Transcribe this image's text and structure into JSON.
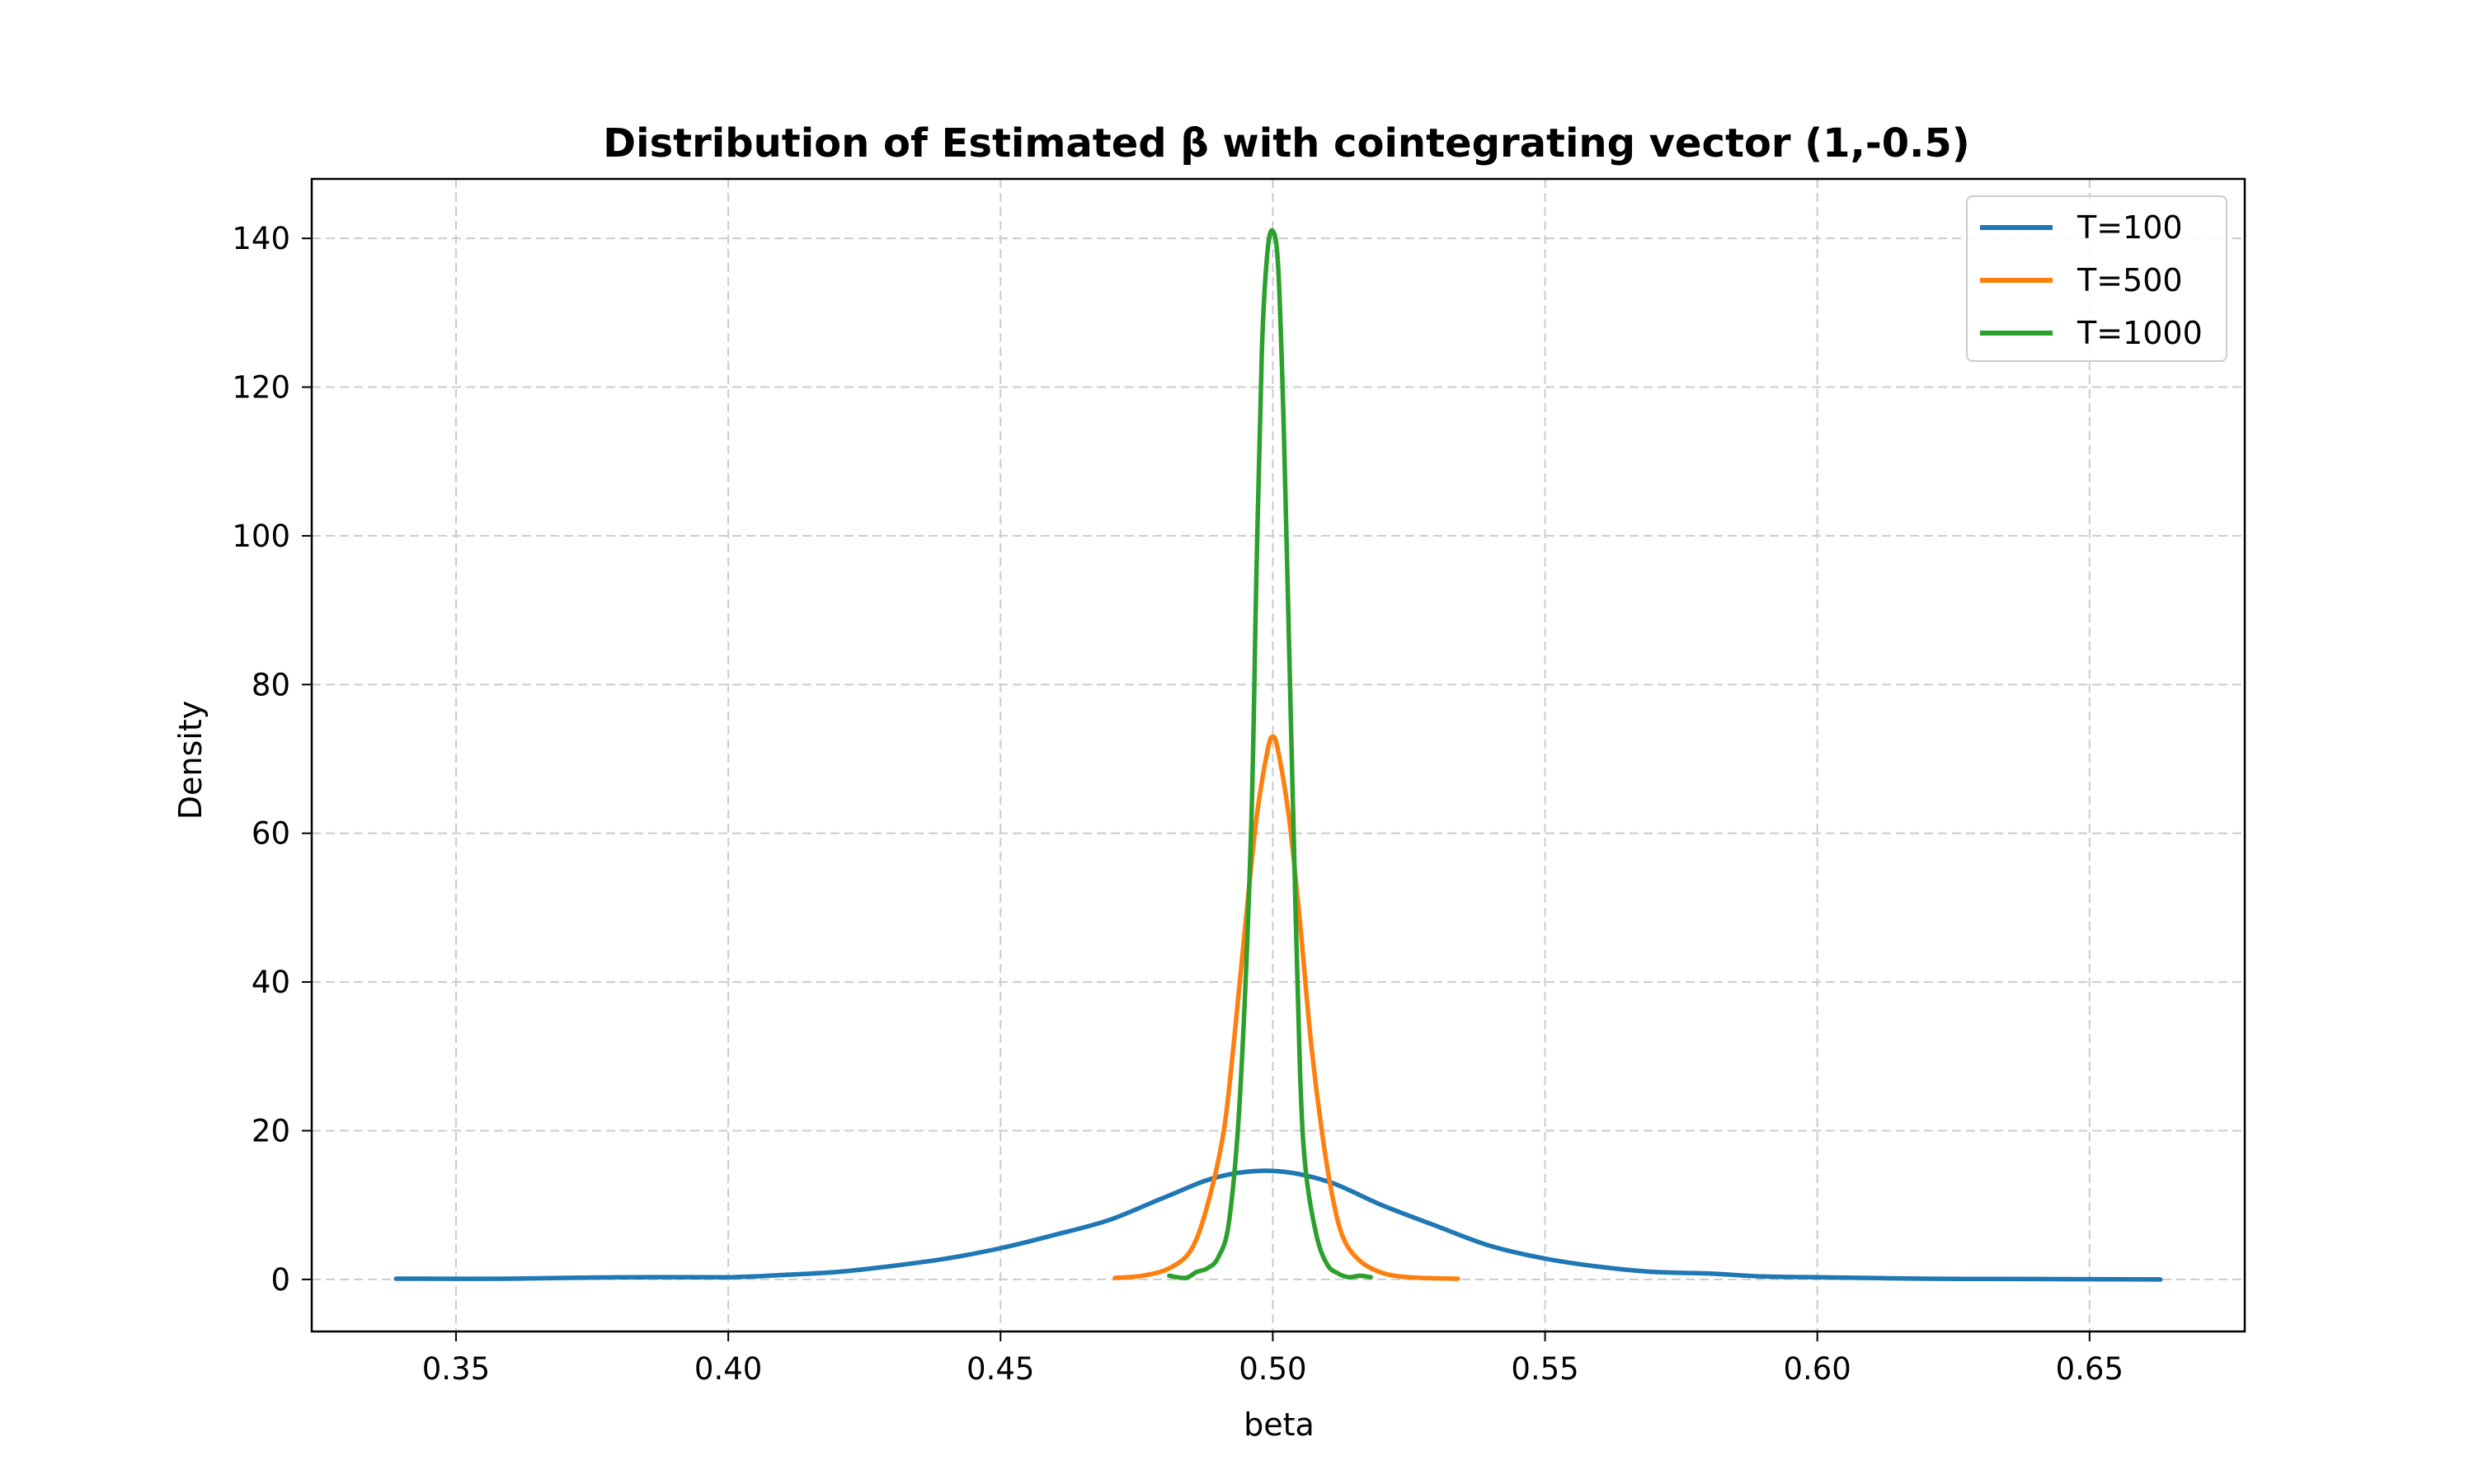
{
  "chart_data": {
    "type": "line",
    "title": "Distribution of Estimated β with cointegrating vector (1,-0.5)",
    "xlabel": "beta",
    "ylabel": "Density",
    "xlim": [
      0.3235,
      0.6785
    ],
    "ylim": [
      -7,
      148
    ],
    "xticks": [
      0.35,
      0.4,
      0.45,
      0.5,
      0.55,
      0.6,
      0.65
    ],
    "xtick_labels": [
      "0.35",
      "0.40",
      "0.45",
      "0.50",
      "0.55",
      "0.60",
      "0.65"
    ],
    "yticks": [
      0,
      20,
      40,
      60,
      80,
      100,
      120,
      140
    ],
    "ytick_labels": [
      "0",
      "20",
      "40",
      "60",
      "80",
      "100",
      "120",
      "140"
    ],
    "grid": true,
    "legend_position": "top-right",
    "series": [
      {
        "name": "T=100",
        "color": "#1f77b4",
        "x": [
          0.339,
          0.36,
          0.38,
          0.4,
          0.41,
          0.42,
          0.43,
          0.44,
          0.45,
          0.46,
          0.47,
          0.48,
          0.49,
          0.5,
          0.51,
          0.52,
          0.53,
          0.54,
          0.55,
          0.56,
          0.57,
          0.58,
          0.59,
          0.6,
          0.62,
          0.64,
          0.663
        ],
        "y": [
          0.1,
          0.1,
          0.3,
          0.3,
          0.6,
          1.0,
          1.8,
          2.8,
          4.2,
          6.0,
          8.0,
          11.0,
          13.8,
          14.6,
          13.2,
          10.0,
          7.2,
          4.5,
          2.8,
          1.7,
          1.0,
          0.8,
          0.4,
          0.3,
          0.1,
          0.05,
          0.0
        ]
      },
      {
        "name": "T=500",
        "color": "#ff7f0e",
        "x": [
          0.471,
          0.476,
          0.481,
          0.485,
          0.488,
          0.491,
          0.493,
          0.495,
          0.497,
          0.499,
          0.5,
          0.501,
          0.503,
          0.505,
          0.507,
          0.509,
          0.511,
          0.513,
          0.516,
          0.52,
          0.525,
          0.534
        ],
        "y": [
          0.2,
          0.5,
          1.5,
          4.0,
          10.0,
          20.0,
          33.0,
          48.0,
          62.0,
          71.0,
          73.0,
          71.0,
          62.0,
          48.0,
          32.0,
          20.0,
          11.0,
          5.5,
          2.5,
          0.9,
          0.3,
          0.1
        ]
      },
      {
        "name": "T=1000",
        "color": "#2ca02c",
        "x": [
          0.481,
          0.484,
          0.486,
          0.488,
          0.49,
          0.492,
          0.494,
          0.496,
          0.497,
          0.498,
          0.499,
          0.5,
          0.501,
          0.502,
          0.503,
          0.504,
          0.505,
          0.506,
          0.508,
          0.51,
          0.512,
          0.514,
          0.516,
          0.518
        ],
        "y": [
          0.5,
          0.2,
          1.0,
          1.5,
          3.0,
          8.0,
          25.0,
          60.0,
          95.0,
          125.0,
          138.0,
          141.0,
          136.0,
          115.0,
          85.0,
          55.0,
          28.0,
          15.0,
          6.0,
          2.0,
          0.8,
          0.3,
          0.5,
          0.3
        ]
      }
    ]
  }
}
